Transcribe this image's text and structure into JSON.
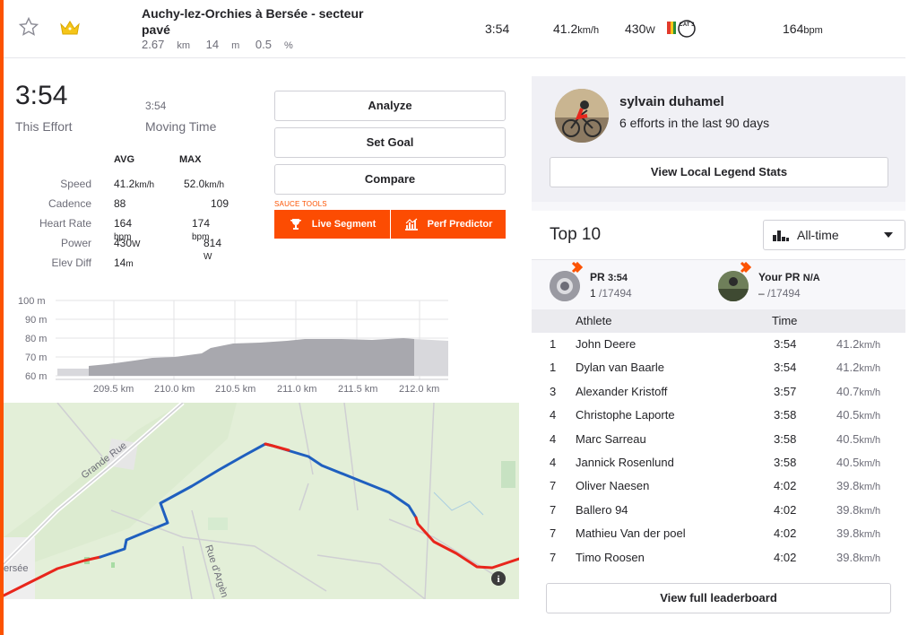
{
  "segment": {
    "name": "Auchy-lez-Orchies à Bersée - secteur pavé",
    "distance": "2.67",
    "distance_unit": "km",
    "elevation": "14",
    "elevation_unit": "m",
    "grade": "0.5",
    "grade_unit": "%",
    "time": "3:54",
    "speed": "41.2",
    "speed_unit": "km/h",
    "power": "430",
    "power_unit": "W",
    "category_badge": "CAT 3",
    "heart_rate": "164",
    "heart_rate_unit": "bpm"
  },
  "effort": {
    "time": "3:54",
    "time_label": "This Effort",
    "moving_time": "3:54",
    "moving_label": "Moving Time",
    "avg_header": "AVG",
    "max_header": "MAX",
    "rows": [
      {
        "label": "Speed",
        "avg": "41.2",
        "avg_unit": "km/h",
        "max": "52.0",
        "max_unit": "km/h"
      },
      {
        "label": "Cadence",
        "avg": "88",
        "avg_unit": "",
        "max": "109",
        "max_unit": ""
      },
      {
        "label": "Heart Rate",
        "avg": "164",
        "avg_unit": " bpm",
        "max": "174",
        "max_unit": " bpm"
      },
      {
        "label": "Power",
        "avg": "430",
        "avg_unit": "W",
        "max": "814",
        "max_unit": " W"
      },
      {
        "label": "Elev Diff",
        "avg": "14",
        "avg_unit": "m",
        "max": "",
        "max_unit": ""
      }
    ]
  },
  "actions": {
    "analyze": "Analyze",
    "set_goal": "Set Goal",
    "compare": "Compare",
    "sauce_label": "SAUCE TOOLS",
    "live_segment": "Live Segment",
    "perf_predictor": "Perf Predictor"
  },
  "elevation_chart": {
    "y_ticks": [
      "100 m",
      "90 m",
      "80 m",
      "70 m",
      "60 m"
    ],
    "x_ticks": [
      "209.5 km",
      "210.0 km",
      "210.5 km",
      "211.0 km",
      "211.5 km",
      "212.0 km"
    ]
  },
  "map": {
    "labels": [
      "Grande Rue",
      "Rue d'Argèn",
      "ersée"
    ]
  },
  "local_legend": {
    "name": "sylvain duhamel",
    "subtitle": "6 efforts in the last 90 days",
    "button": "View Local Legend Stats"
  },
  "top10": {
    "title": "Top 10",
    "filter": "All-time",
    "pr_label": "PR",
    "pr_time": "3:54",
    "pr_rank": "1",
    "pr_total": "/17494",
    "your_pr_label": "Your PR",
    "your_pr_value": "N/A",
    "your_pr_rank": "–",
    "your_pr_total": "/17494",
    "col_athlete": "Athlete",
    "col_time": "Time",
    "rows": [
      {
        "rank": "1",
        "athlete": "John Deere",
        "time": "3:54",
        "speed": "41.2",
        "unit": "km/h"
      },
      {
        "rank": "1",
        "athlete": "Dylan van Baarle",
        "time": "3:54",
        "speed": "41.2",
        "unit": "km/h"
      },
      {
        "rank": "3",
        "athlete": "Alexander Kristoff",
        "time": "3:57",
        "speed": "40.7",
        "unit": "km/h"
      },
      {
        "rank": "4",
        "athlete": "Christophe Laporte",
        "time": "3:58",
        "speed": "40.5",
        "unit": "km/h"
      },
      {
        "rank": "4",
        "athlete": "Marc Sarreau",
        "time": "3:58",
        "speed": "40.5",
        "unit": "km/h"
      },
      {
        "rank": "4",
        "athlete": "Jannick Rosenlund",
        "time": "3:58",
        "speed": "40.5",
        "unit": "km/h"
      },
      {
        "rank": "7",
        "athlete": "Oliver Naesen",
        "time": "4:02",
        "speed": "39.8",
        "unit": "km/h"
      },
      {
        "rank": "7",
        "athlete": "Ballero 94",
        "time": "4:02",
        "speed": "39.8",
        "unit": "km/h"
      },
      {
        "rank": "7",
        "athlete": "Mathieu Van der poel",
        "time": "4:02",
        "speed": "39.8",
        "unit": "km/h"
      },
      {
        "rank": "7",
        "athlete": "Timo Roosen",
        "time": "4:02",
        "speed": "39.8",
        "unit": "km/h"
      }
    ],
    "full_button": "View full leaderboard"
  },
  "colors": {
    "accent": "#fc5200",
    "route_blue": "#1f5fbf",
    "route_red": "#e8261c",
    "map_bg": "#e8f1dd"
  }
}
